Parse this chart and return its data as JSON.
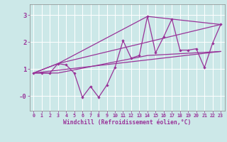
{
  "background_color": "#cce8e8",
  "line_color": "#993399",
  "grid_color": "#ffffff",
  "xlabel": "Windchill (Refroidissement éolien,°C)",
  "ytick_labels": [
    "3",
    "2",
    "1",
    "-0"
  ],
  "ytick_vals": [
    3,
    2,
    1,
    0
  ],
  "ylim": [
    -0.55,
    3.4
  ],
  "xlim": [
    -0.5,
    23.5
  ],
  "xtick_labels": [
    "0",
    "1",
    "2",
    "3",
    "4",
    "5",
    "6",
    "7",
    "8",
    "9",
    "10",
    "11",
    "12",
    "13",
    "14",
    "15",
    "16",
    "17",
    "18",
    "19",
    "20",
    "21",
    "22",
    "23"
  ],
  "line1_x": [
    0,
    1,
    2,
    3,
    4,
    5,
    6,
    7,
    8,
    9,
    10,
    11,
    12,
    13,
    14,
    15,
    16,
    17,
    18,
    19,
    20,
    21,
    22,
    23
  ],
  "line1_y": [
    0.85,
    0.85,
    0.85,
    1.2,
    1.15,
    0.85,
    -0.05,
    0.35,
    -0.05,
    0.4,
    1.05,
    2.05,
    1.4,
    1.5,
    2.95,
    1.6,
    2.2,
    2.85,
    1.7,
    1.7,
    1.75,
    1.05,
    1.95,
    2.65
  ],
  "line2_x": [
    0,
    3,
    23
  ],
  "line2_y": [
    0.85,
    1.2,
    2.65
  ],
  "line3_x": [
    0,
    3,
    14,
    23
  ],
  "line3_y": [
    0.85,
    1.2,
    2.95,
    2.65
  ],
  "line4_x": [
    0,
    23
  ],
  "line4_y": [
    0.85,
    1.65
  ],
  "line5_x": [
    0,
    3,
    14,
    23
  ],
  "line5_y": [
    0.85,
    0.85,
    1.5,
    1.65
  ],
  "figsize": [
    3.2,
    2.0
  ],
  "dpi": 100
}
